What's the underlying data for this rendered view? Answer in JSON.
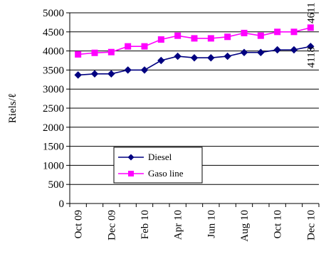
{
  "chart_data": {
    "type": "line",
    "ylabel": "Riels/ℓ",
    "xlabel": "",
    "ylim": [
      0,
      5000
    ],
    "y_ticks": [
      0,
      500,
      1000,
      1500,
      2000,
      2500,
      3000,
      3500,
      4000,
      4500,
      5000
    ],
    "x_ticks": [
      "Oct 09",
      "Dec 09",
      "Feb 10",
      "Apr 10",
      "Jun 10",
      "Aug 10",
      "Oct 10",
      "Dec 10"
    ],
    "legend_position": "lower-left inside plot",
    "grid": "horizontal",
    "series": [
      {
        "name": "Diesel",
        "color": "#000080",
        "marker": "diamond",
        "values": [
          3370,
          3400,
          3400,
          3500,
          3500,
          3750,
          3860,
          3820,
          3820,
          3860,
          3960,
          3960,
          4030,
          4030,
          4118
        ],
        "end_label": "4118"
      },
      {
        "name": "Gasoline",
        "color": "#ff00ff",
        "marker": "square",
        "values": [
          3910,
          3950,
          3970,
          4120,
          4120,
          4300,
          4400,
          4330,
          4330,
          4370,
          4470,
          4400,
          4500,
          4500,
          4611
        ],
        "end_label": "4611"
      }
    ],
    "legend": {
      "diesel": "Diesel",
      "gasoline": "Gaso line"
    }
  }
}
